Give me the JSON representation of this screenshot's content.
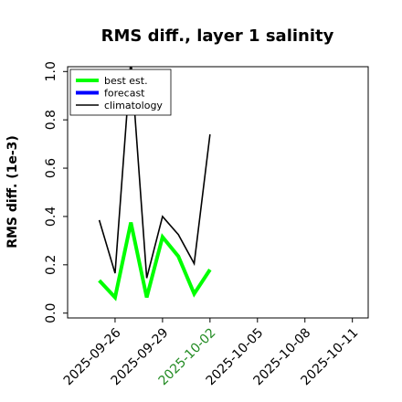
{
  "chart_data": {
    "type": "line",
    "title": "RMS diff., layer 1 salinity",
    "xlabel": "",
    "ylabel": "RMS diff. (1e-3)",
    "ylim": [
      -0.02,
      1.02
    ],
    "xlim": [
      "2025-09-23",
      "2025-10-12"
    ],
    "yticks": [
      0.0,
      0.2,
      0.4,
      0.6,
      0.8,
      1.0
    ],
    "ytick_labels": [
      "0.0",
      "0.2",
      "0.4",
      "0.6",
      "0.8",
      "1.0"
    ],
    "xticks": [
      "2025-09-26",
      "2025-09-29",
      "2025-10-02",
      "2025-10-05",
      "2025-10-08",
      "2025-10-11"
    ],
    "xtick_labels": [
      "2025-09-26",
      "2025-09-29",
      "2025-10-02",
      "2025-10-05",
      "2025-10-08",
      "2025-10-11"
    ],
    "highlight_tick": "2025-10-02",
    "highlight_color": "#228B22",
    "grid": false,
    "legend_position": "top-left",
    "series": [
      {
        "name": "best est.",
        "color": "#00ff00",
        "x": [
          "2025-09-25",
          "2025-09-26",
          "2025-09-27",
          "2025-09-28",
          "2025-09-29",
          "2025-09-30",
          "2025-10-01",
          "2025-10-02"
        ],
        "values": [
          0.135,
          0.065,
          0.375,
          0.065,
          0.315,
          0.235,
          0.08,
          0.18
        ]
      },
      {
        "name": "forecast",
        "color": "#0000ff",
        "x": [],
        "values": []
      },
      {
        "name": "climatology",
        "color": "#000000",
        "x": [
          "2025-09-25",
          "2025-09-26",
          "2025-09-27",
          "2025-09-28",
          "2025-09-29",
          "2025-09-30",
          "2025-10-01",
          "2025-10-02"
        ],
        "values": [
          0.385,
          0.165,
          1.05,
          0.145,
          0.4,
          0.325,
          0.205,
          0.74
        ]
      }
    ]
  }
}
